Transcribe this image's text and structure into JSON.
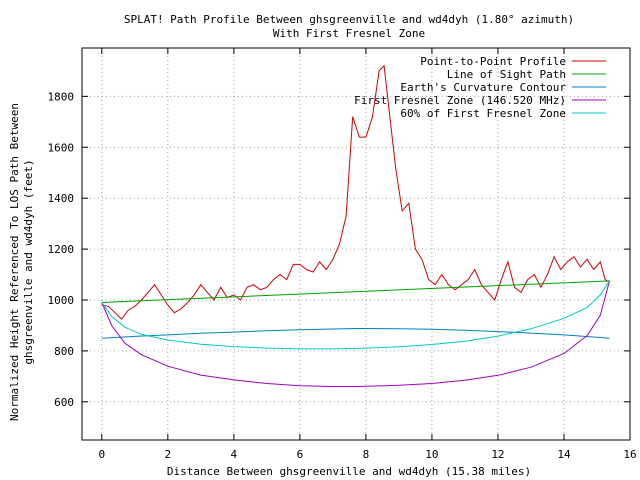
{
  "chart_data": {
    "type": "line",
    "title": "SPLAT! Path Profile Between ghsgreenville and wd4dyh (1.80° azimuth)",
    "subtitle": "With First Fresnel Zone",
    "xlabel": "Distance Between ghsgreenville and wd4dyh (15.38 miles)",
    "ylabel": [
      "Normalized Height Referenced To LOS Path Between",
      "ghsgreenville and wd4dyh (feet)"
    ],
    "xlim": [
      -0.6,
      16
    ],
    "ylim": [
      450,
      1990
    ],
    "xticks": [
      0,
      2,
      4,
      6,
      8,
      10,
      12,
      14,
      16
    ],
    "yticks": [
      600,
      800,
      1000,
      1200,
      1400,
      1600,
      1800
    ],
    "grid": true,
    "legend_position": "top-right",
    "series": [
      {
        "name": "Point-to-Point Profile",
        "color": "#d00000",
        "x": [
          0,
          0.2,
          0.4,
          0.6,
          0.8,
          1.0,
          1.2,
          1.4,
          1.6,
          1.8,
          2.0,
          2.2,
          2.4,
          2.6,
          2.8,
          3.0,
          3.2,
          3.4,
          3.6,
          3.8,
          4.0,
          4.2,
          4.4,
          4.6,
          4.8,
          5.0,
          5.2,
          5.4,
          5.6,
          5.8,
          6.0,
          6.2,
          6.4,
          6.6,
          6.8,
          7.0,
          7.2,
          7.4,
          7.6,
          7.8,
          8.0,
          8.2,
          8.4,
          8.55,
          8.7,
          8.9,
          9.1,
          9.3,
          9.5,
          9.7,
          9.9,
          10.1,
          10.3,
          10.5,
          10.7,
          10.9,
          11.1,
          11.3,
          11.5,
          11.7,
          11.9,
          12.1,
          12.3,
          12.5,
          12.7,
          12.9,
          13.1,
          13.3,
          13.5,
          13.7,
          13.9,
          14.1,
          14.3,
          14.5,
          14.7,
          14.9,
          15.1,
          15.25,
          15.38
        ],
        "values": [
          980,
          975,
          950,
          925,
          960,
          975,
          1000,
          1030,
          1060,
          1020,
          980,
          950,
          965,
          990,
          1020,
          1060,
          1030,
          1000,
          1050,
          1010,
          1020,
          1000,
          1050,
          1060,
          1040,
          1050,
          1080,
          1100,
          1080,
          1140,
          1140,
          1120,
          1110,
          1150,
          1120,
          1160,
          1220,
          1330,
          1720,
          1640,
          1640,
          1720,
          1900,
          1920,
          1750,
          1520,
          1350,
          1380,
          1200,
          1160,
          1080,
          1060,
          1100,
          1060,
          1040,
          1060,
          1080,
          1120,
          1060,
          1030,
          1000,
          1080,
          1150,
          1050,
          1030,
          1080,
          1100,
          1050,
          1100,
          1170,
          1120,
          1150,
          1170,
          1130,
          1160,
          1120,
          1150,
          1080,
          1070
        ]
      },
      {
        "name": "Line of Sight Path",
        "color": "#00a000",
        "x": [
          0,
          15.38
        ],
        "values": [
          990,
          1075
        ]
      },
      {
        "name": "Earth's Curvature Contour",
        "color": "#0080c0",
        "x": [
          0,
          1,
          2,
          3,
          4,
          5,
          6,
          7,
          7.69,
          8,
          9,
          10,
          11,
          12,
          13,
          14,
          15,
          15.38
        ],
        "values": [
          850,
          857,
          863,
          869,
          874,
          879,
          883,
          886,
          888,
          888,
          887,
          885,
          881,
          876,
          870,
          863,
          854,
          850
        ]
      },
      {
        "name": "First Fresnel Zone (146.520 MHz)",
        "color": "#a000c0",
        "x": [
          0,
          0.3,
          0.7,
          1.2,
          2,
          3,
          4,
          5,
          6,
          7,
          7.69,
          8,
          9,
          10,
          11,
          12,
          13,
          14,
          14.7,
          15.1,
          15.38
        ],
        "values": [
          990,
          900,
          830,
          785,
          740,
          705,
          686,
          672,
          663,
          660,
          660,
          661,
          665,
          672,
          685,
          704,
          736,
          790,
          860,
          940,
          1075
        ]
      },
      {
        "name": "60% of First Fresnel Zone",
        "color": "#00c8c8",
        "x": [
          0,
          0.3,
          0.7,
          1.2,
          2,
          3,
          4,
          5,
          6,
          7,
          7.69,
          8,
          9,
          10,
          11,
          12,
          13,
          14,
          14.7,
          15.1,
          15.38
        ],
        "values": [
          990,
          935,
          893,
          865,
          843,
          826,
          817,
          811,
          808,
          808,
          810,
          811,
          816,
          825,
          838,
          858,
          887,
          928,
          970,
          1020,
          1075
        ]
      }
    ]
  }
}
